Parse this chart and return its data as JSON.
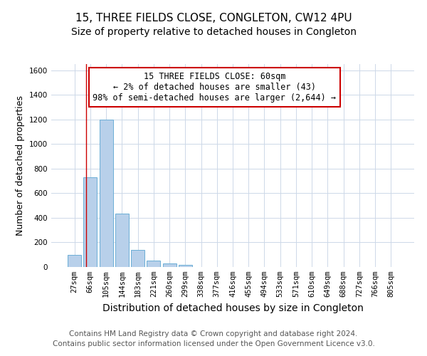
{
  "title": "15, THREE FIELDS CLOSE, CONGLETON, CW12 4PU",
  "subtitle": "Size of property relative to detached houses in Congleton",
  "xlabel": "Distribution of detached houses by size in Congleton",
  "ylabel": "Number of detached properties",
  "footer_line1": "Contains HM Land Registry data © Crown copyright and database right 2024.",
  "footer_line2": "Contains public sector information licensed under the Open Government Licence v3.0.",
  "categories": [
    "27sqm",
    "66sqm",
    "105sqm",
    "144sqm",
    "183sqm",
    "221sqm",
    "260sqm",
    "299sqm",
    "338sqm",
    "377sqm",
    "416sqm",
    "455sqm",
    "494sqm",
    "533sqm",
    "571sqm",
    "610sqm",
    "649sqm",
    "688sqm",
    "727sqm",
    "766sqm",
    "805sqm"
  ],
  "values": [
    100,
    730,
    1200,
    435,
    140,
    50,
    30,
    20,
    0,
    0,
    0,
    0,
    0,
    0,
    0,
    0,
    0,
    0,
    0,
    0,
    0
  ],
  "bar_color": "#b8d0ea",
  "bar_edge_color": "#6baed6",
  "background_color": "#ffffff",
  "grid_color": "#cdd8e8",
  "annotation_line1": "15 THREE FIELDS CLOSE: 60sqm",
  "annotation_line2": "← 2% of detached houses are smaller (43)",
  "annotation_line3": "98% of semi-detached houses are larger (2,644) →",
  "annotation_box_color": "#ffffff",
  "annotation_box_edge_color": "#cc0000",
  "annotation_text_color": "#000000",
  "vline_color": "#cc0000",
  "vline_x": 0.72,
  "ylim": [
    0,
    1650
  ],
  "yticks": [
    0,
    200,
    400,
    600,
    800,
    1000,
    1200,
    1400,
    1600
  ],
  "title_fontsize": 11,
  "subtitle_fontsize": 10,
  "xlabel_fontsize": 10,
  "ylabel_fontsize": 9,
  "tick_fontsize": 7.5,
  "annotation_fontsize": 8.5,
  "footer_fontsize": 7.5
}
